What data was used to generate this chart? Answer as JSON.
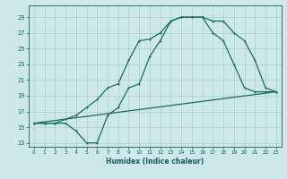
{
  "xlabel": "Humidex (Indice chaleur)",
  "bg_color": "#cce8e8",
  "grid_color": "#aacfcf",
  "line_color": "#1a6b5a",
  "xlim": [
    -0.5,
    23.5
  ],
  "ylim": [
    12.5,
    30.5
  ],
  "xticks": [
    0,
    1,
    2,
    3,
    4,
    5,
    6,
    7,
    8,
    9,
    10,
    11,
    12,
    13,
    14,
    15,
    16,
    17,
    18,
    19,
    20,
    21,
    22,
    23
  ],
  "yticks": [
    13,
    15,
    17,
    19,
    21,
    23,
    25,
    27,
    29
  ],
  "curve1_x": [
    0,
    1,
    2,
    3,
    4,
    5,
    6,
    7,
    8,
    9,
    10,
    11,
    12,
    13,
    14,
    15,
    16,
    17,
    18,
    19,
    20,
    21,
    22,
    23
  ],
  "curve1_y": [
    15.5,
    15.5,
    15.5,
    16.0,
    16.5,
    17.5,
    18.5,
    20.0,
    20.5,
    23.5,
    26.0,
    26.2,
    27.0,
    28.5,
    29.0,
    29.0,
    29.0,
    27.0,
    26.0,
    23.0,
    20.0,
    19.5,
    19.5,
    19.5
  ],
  "curve2_x": [
    0,
    1,
    2,
    3,
    4,
    5,
    6,
    7,
    8,
    9,
    10,
    11,
    12,
    13,
    14,
    15,
    16,
    17,
    18,
    19,
    20,
    21,
    22,
    23
  ],
  "curve2_y": [
    15.5,
    15.5,
    15.5,
    15.5,
    14.5,
    13.0,
    13.0,
    16.5,
    17.5,
    20.0,
    20.5,
    24.0,
    26.0,
    28.5,
    29.0,
    29.0,
    29.0,
    28.5,
    28.5,
    27.0,
    26.0,
    23.5,
    20.0,
    19.5
  ],
  "curve3_x": [
    0,
    23
  ],
  "curve3_y": [
    15.5,
    19.5
  ]
}
